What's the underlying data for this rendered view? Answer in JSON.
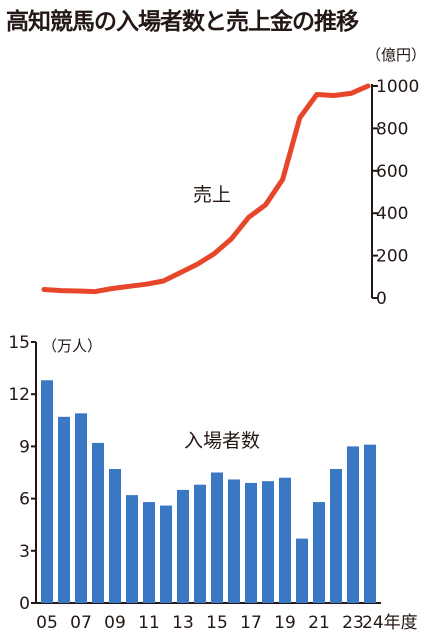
{
  "title": "高知競馬の入場者数と売上金の推移",
  "chart_data": [
    {
      "type": "line",
      "name": "売上",
      "series_label": "売上",
      "unit_label": "（億円）",
      "color": "#e8462a",
      "ylim": [
        0,
        1000
      ],
      "yticks": [
        "0",
        "200",
        "400",
        "600",
        "800",
        "1000"
      ],
      "x": [
        "05",
        "06",
        "07",
        "08",
        "09",
        "10",
        "11",
        "12",
        "13",
        "14",
        "15",
        "16",
        "17",
        "18",
        "19",
        "20",
        "21",
        "22",
        "23",
        "24"
      ],
      "values": [
        40,
        35,
        33,
        30,
        45,
        55,
        65,
        80,
        120,
        160,
        210,
        280,
        380,
        440,
        560,
        850,
        960,
        955,
        965,
        1000
      ]
    },
    {
      "type": "bar",
      "name": "入場者数",
      "series_label": "入場者数",
      "unit_label": "（万人）",
      "color": "#3a78c4",
      "ylim": [
        0,
        15
      ],
      "yticks": [
        "0",
        "3",
        "6",
        "9",
        "12",
        "15"
      ],
      "categories": [
        "05",
        "06",
        "07",
        "08",
        "09",
        "10",
        "11",
        "12",
        "13",
        "14",
        "15",
        "16",
        "17",
        "18",
        "19",
        "20",
        "21",
        "22",
        "23",
        "24"
      ],
      "values": [
        12.8,
        10.7,
        10.9,
        9.2,
        7.7,
        6.2,
        5.8,
        5.6,
        6.5,
        6.8,
        7.5,
        7.1,
        6.9,
        7.0,
        7.2,
        3.7,
        5.8,
        7.7,
        9.0,
        9.1
      ],
      "xtick_labels": [
        "05",
        "07",
        "09",
        "11",
        "13",
        "15",
        "17",
        "19",
        "21",
        "23",
        "24年度"
      ]
    }
  ]
}
